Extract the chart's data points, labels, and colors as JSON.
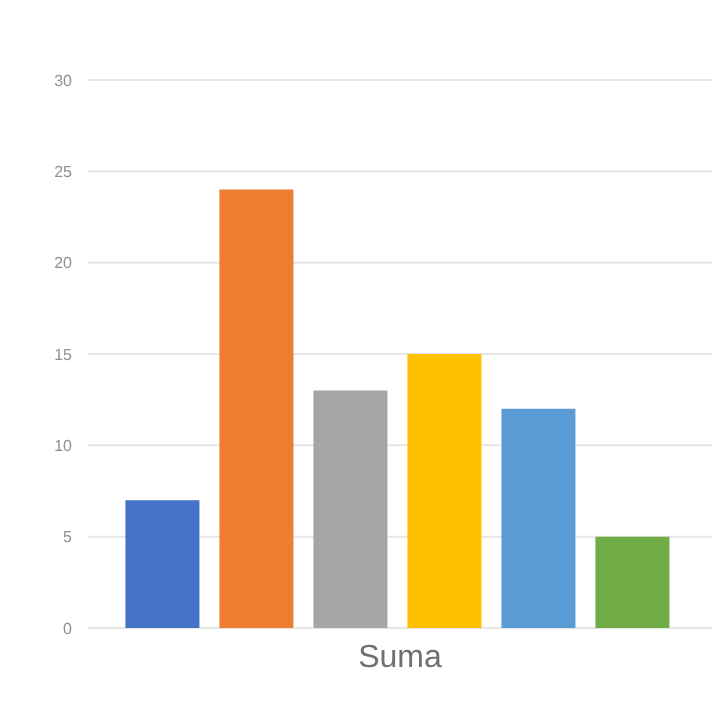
{
  "chart_data": {
    "type": "bar",
    "categories": [
      "Suma"
    ],
    "series": [
      {
        "color": "#4472c4",
        "values": [
          7
        ]
      },
      {
        "color": "#ed7d31",
        "values": [
          24
        ]
      },
      {
        "color": "#a5a5a5",
        "values": [
          13
        ]
      },
      {
        "color": "#ffc000",
        "values": [
          15
        ]
      },
      {
        "color": "#5b9bd5",
        "values": [
          12
        ]
      },
      {
        "color": "#70ad47",
        "values": [
          5
        ]
      }
    ],
    "ylim": [
      0,
      30
    ],
    "yticks": [
      0,
      5,
      10,
      15,
      20,
      25,
      30
    ],
    "grid": "y",
    "legend": false
  }
}
